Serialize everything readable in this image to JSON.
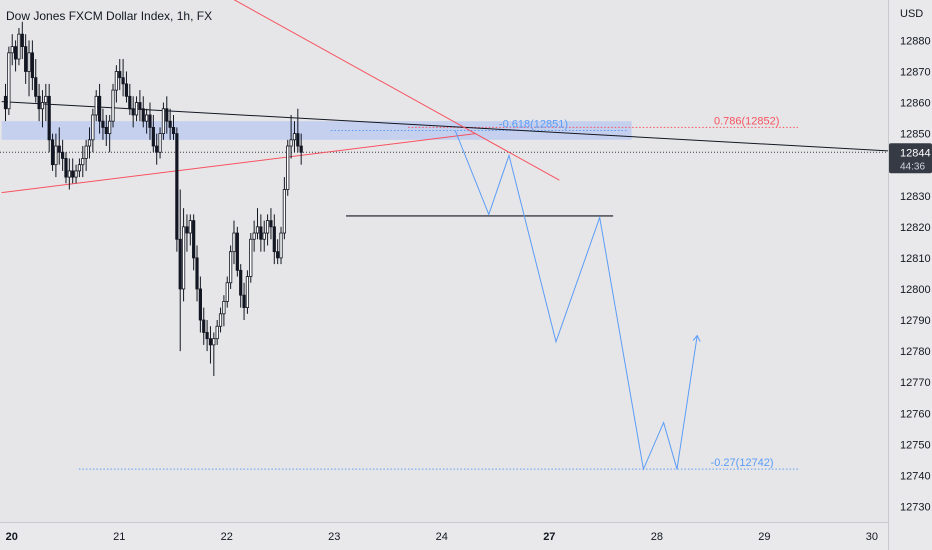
{
  "header": {
    "title": "Dow Jones FXCM Dollar Index, 1h, FX",
    "currency": "USD"
  },
  "price_tag": {
    "price": "12844",
    "countdown": "44:36",
    "bg": "#363a45"
  },
  "colors": {
    "up": "#ffffff",
    "down": "#131722",
    "wick": "#131722",
    "redline": "#f7525f",
    "projection": "#5b9cf6",
    "zone": "#b9c8f0",
    "axis_text": "#131722"
  },
  "chart_data": {
    "type": "candlestick",
    "title": "Dow Jones FXCM Dollar Index, 1h, FX",
    "ylim": [
      12725,
      12893
    ],
    "y_ticks": [
      12730,
      12740,
      12750,
      12760,
      12770,
      12780,
      12790,
      12800,
      12810,
      12820,
      12830,
      12840,
      12850,
      12860,
      12870,
      12880
    ],
    "x_ticks": [
      {
        "label": "20",
        "t": 2,
        "bold": true
      },
      {
        "label": "21",
        "t": 34,
        "bold": false
      },
      {
        "label": "22",
        "t": 66,
        "bold": false
      },
      {
        "label": "23",
        "t": 98,
        "bold": false
      },
      {
        "label": "24",
        "t": 130,
        "bold": false
      },
      {
        "label": "27",
        "t": 162,
        "bold": true
      },
      {
        "label": "28",
        "t": 194,
        "bold": false
      },
      {
        "label": "29",
        "t": 226,
        "bold": false
      },
      {
        "label": "30",
        "t": 258,
        "bold": false
      }
    ],
    "candles": [
      [
        12862,
        12866,
        12854,
        12858
      ],
      [
        12858,
        12878,
        12856,
        12876
      ],
      [
        12876,
        12882,
        12872,
        12878
      ],
      [
        12878,
        12880,
        12870,
        12874
      ],
      [
        12874,
        12884,
        12872,
        12882
      ],
      [
        12882,
        12886,
        12874,
        12878
      ],
      [
        12878,
        12882,
        12866,
        12870
      ],
      [
        12870,
        12880,
        12862,
        12876
      ],
      [
        12876,
        12880,
        12864,
        12868
      ],
      [
        12868,
        12874,
        12860,
        12862
      ],
      [
        12862,
        12866,
        12854,
        12858
      ],
      [
        12858,
        12864,
        12852,
        12860
      ],
      [
        12860,
        12866,
        12854,
        12862
      ],
      [
        12862,
        12866,
        12844,
        12848
      ],
      [
        12848,
        12850,
        12838,
        12840
      ],
      [
        12840,
        12850,
        12836,
        12846
      ],
      [
        12846,
        12852,
        12840,
        12844
      ],
      [
        12844,
        12848,
        12838,
        12842
      ],
      [
        12842,
        12844,
        12834,
        12836
      ],
      [
        12836,
        12842,
        12832,
        12838
      ],
      [
        12838,
        12842,
        12834,
        12836
      ],
      [
        12836,
        12840,
        12834,
        12838
      ],
      [
        12838,
        12842,
        12836,
        12840
      ],
      [
        12840,
        12846,
        12836,
        12842
      ],
      [
        12842,
        12848,
        12838,
        12846
      ],
      [
        12846,
        12852,
        12842,
        12848
      ],
      [
        12848,
        12858,
        12844,
        12856
      ],
      [
        12856,
        12864,
        12854,
        12862
      ],
      [
        12862,
        12866,
        12850,
        12854
      ],
      [
        12854,
        12858,
        12848,
        12852
      ],
      [
        12852,
        12856,
        12846,
        12850
      ],
      [
        12850,
        12856,
        12844,
        12854
      ],
      [
        12854,
        12866,
        12852,
        12864
      ],
      [
        12864,
        12872,
        12860,
        12870
      ],
      [
        12870,
        12874,
        12864,
        12868
      ],
      [
        12868,
        12874,
        12862,
        12866
      ],
      [
        12866,
        12870,
        12860,
        12862
      ],
      [
        12862,
        12866,
        12856,
        12858
      ],
      [
        12858,
        12862,
        12852,
        12856
      ],
      [
        12856,
        12862,
        12854,
        12860
      ],
      [
        12860,
        12864,
        12854,
        12858
      ],
      [
        12858,
        12862,
        12852,
        12854
      ],
      [
        12854,
        12858,
        12850,
        12856
      ],
      [
        12856,
        12860,
        12848,
        12852
      ],
      [
        12852,
        12856,
        12844,
        12846
      ],
      [
        12846,
        12850,
        12840,
        12844
      ],
      [
        12844,
        12852,
        12842,
        12850
      ],
      [
        12850,
        12860,
        12848,
        12858
      ],
      [
        12858,
        12862,
        12850,
        12854
      ],
      [
        12854,
        12858,
        12848,
        12852
      ],
      [
        12852,
        12856,
        12848,
        12850
      ],
      [
        12850,
        12852,
        12812,
        12816
      ],
      [
        12816,
        12832,
        12780,
        12800
      ],
      [
        12800,
        12826,
        12796,
        12820
      ],
      [
        12820,
        12824,
        12812,
        12818
      ],
      [
        12818,
        12824,
        12814,
        12822
      ],
      [
        12822,
        12824,
        12806,
        12810
      ],
      [
        12810,
        12814,
        12796,
        12800
      ],
      [
        12800,
        12804,
        12786,
        12790
      ],
      [
        12790,
        12794,
        12782,
        12786
      ],
      [
        12786,
        12790,
        12780,
        12784
      ],
      [
        12784,
        12788,
        12776,
        12782
      ],
      [
        12782,
        12786,
        12772,
        12784
      ],
      [
        12784,
        12790,
        12782,
        12788
      ],
      [
        12788,
        12794,
        12786,
        12792
      ],
      [
        12792,
        12798,
        12788,
        12796
      ],
      [
        12796,
        12804,
        12794,
        12802
      ],
      [
        12802,
        12814,
        12800,
        12812
      ],
      [
        12812,
        12822,
        12808,
        12818
      ],
      [
        12818,
        12820,
        12804,
        12806
      ],
      [
        12806,
        12808,
        12794,
        12798
      ],
      [
        12798,
        12802,
        12790,
        12794
      ],
      [
        12794,
        12806,
        12792,
        12804
      ],
      [
        12804,
        12818,
        12802,
        12816
      ],
      [
        12816,
        12822,
        12812,
        12818
      ],
      [
        12818,
        12826,
        12816,
        12820
      ],
      [
        12820,
        12824,
        12812,
        12816
      ],
      [
        12816,
        12822,
        12812,
        12818
      ],
      [
        12818,
        12824,
        12814,
        12822
      ],
      [
        12822,
        12826,
        12816,
        12820
      ],
      [
        12820,
        12824,
        12808,
        12812
      ],
      [
        12812,
        12816,
        12808,
        12810
      ],
      [
        12810,
        12820,
        12808,
        12818
      ],
      [
        12818,
        12836,
        12816,
        12832
      ],
      [
        12832,
        12848,
        12830,
        12846
      ],
      [
        12846,
        12856,
        12842,
        12848
      ],
      [
        12848,
        12854,
        12844,
        12850
      ],
      [
        12850,
        12858,
        12844,
        12846
      ],
      [
        12846,
        12850,
        12840,
        12844
      ]
    ],
    "support_line": {
      "price": 12823.5,
      "t0": 101.5,
      "t1": 181
    },
    "fib_zone": {
      "low": 12848,
      "high": 12854,
      "t0": -1,
      "t1": 186.5
    },
    "trendline_black": {
      "t0": -1,
      "p0": 12860.3,
      "t1": 270,
      "p1": 12844
    },
    "trendline_red_up": {
      "t0": -1,
      "p0": 12831,
      "t1": 140,
      "p1": 12850
    },
    "trendline_red_down": {
      "t0": 60,
      "p0": 12898,
      "t1": 165,
      "p1": 12835
    },
    "projection_path": [
      [
        134,
        12851
      ],
      [
        144,
        12824
      ],
      [
        150,
        12843
      ],
      [
        164,
        12783
      ],
      [
        177,
        12823
      ],
      [
        190,
        12742
      ],
      [
        196,
        12757
      ],
      [
        200,
        12742
      ],
      [
        206,
        12785
      ]
    ],
    "fib_levels": [
      {
        "label": "0.786(12852)",
        "price": 12852,
        "t0": 120,
        "t1": 236,
        "color": "#f7525f",
        "label_t": 211
      },
      {
        "label": "-0.618(12851)",
        "price": 12851,
        "t0": 97,
        "t1": 185,
        "color": "#5b9cf6",
        "label_t": 147
      },
      {
        "label": "-0.27(12742)",
        "price": 12742,
        "t0": 22,
        "t1": 236,
        "color": "#5b9cf6",
        "label_t": 210
      }
    ],
    "current_price": 12844
  }
}
